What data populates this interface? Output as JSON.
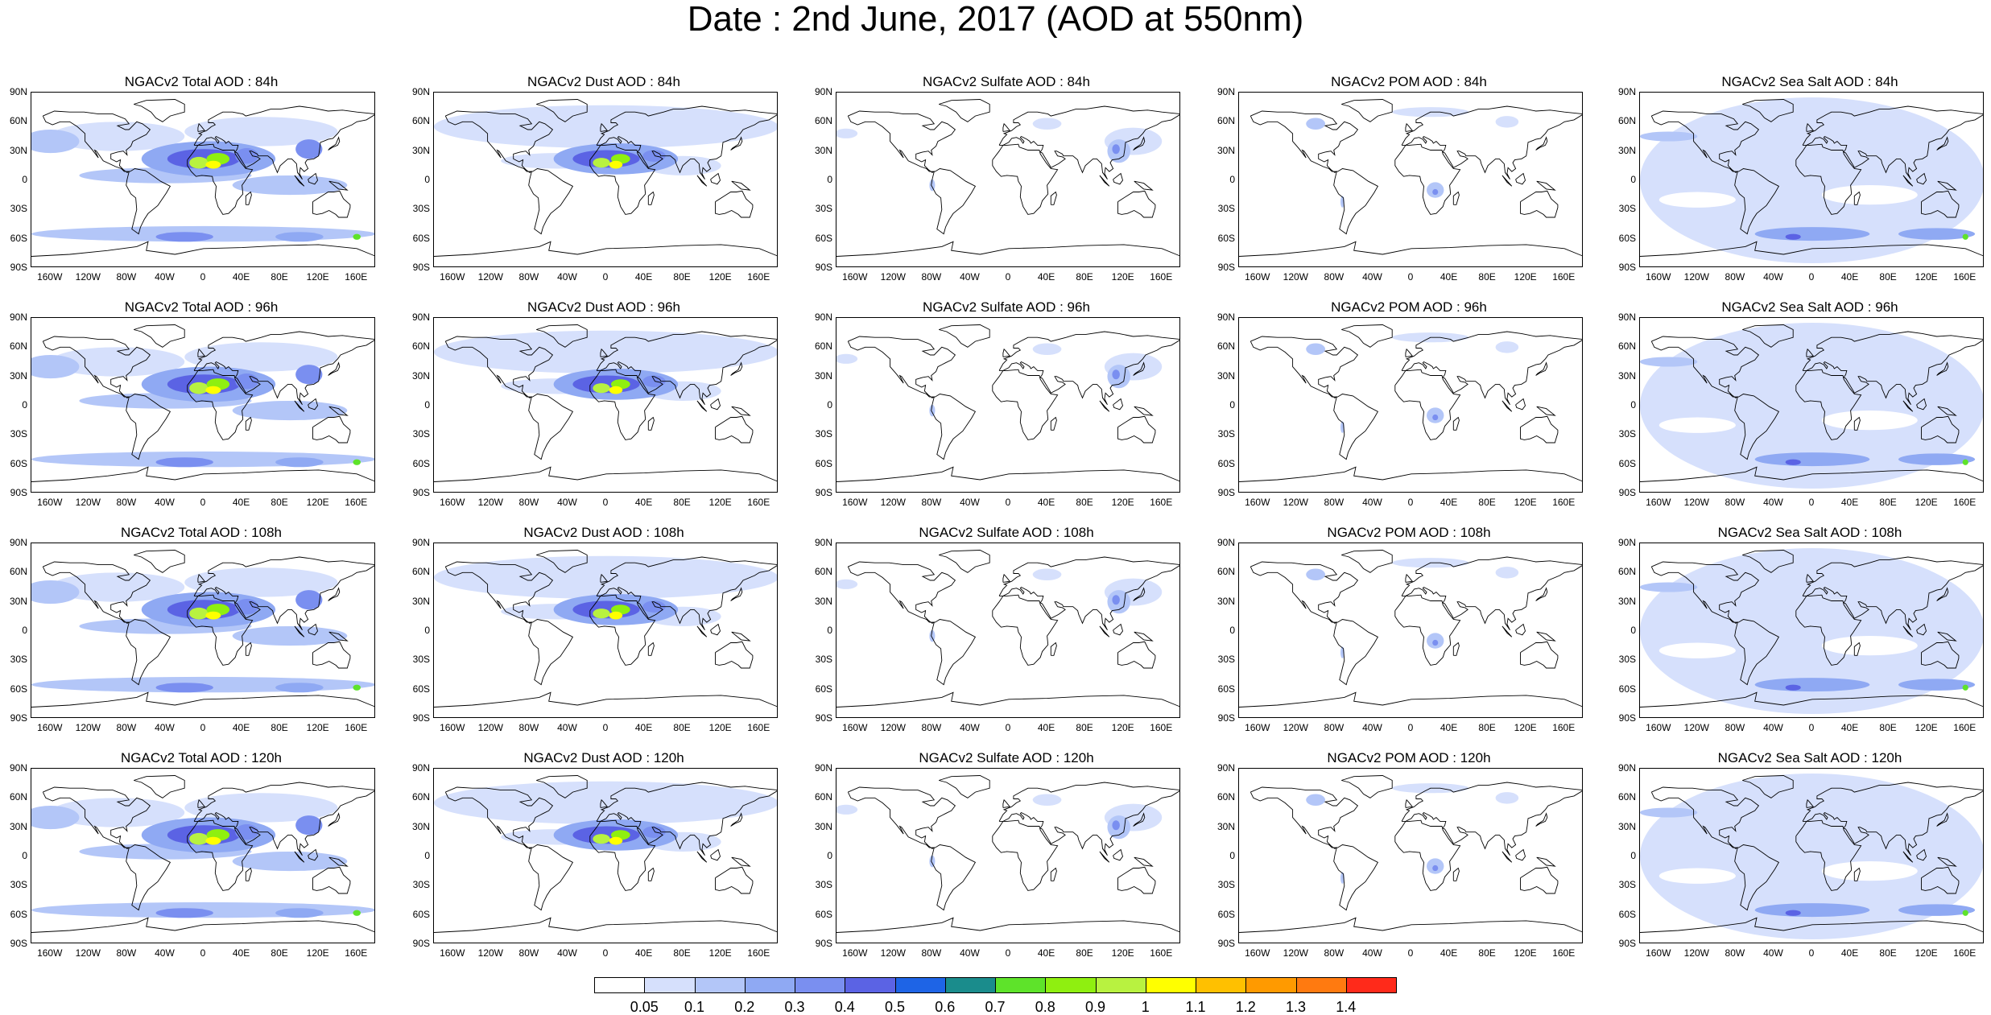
{
  "title": "Date : 2nd June, 2017 (AOD at 550nm)",
  "lat_ticks": [
    "90N",
    "60N",
    "30N",
    "0",
    "30S",
    "60S",
    "90S"
  ],
  "lon_ticks": [
    "160W",
    "120W",
    "80W",
    "40W",
    "0",
    "40E",
    "80E",
    "120E",
    "160E"
  ],
  "panels": [
    [
      {
        "title": "NGACv2 Total AOD : 84h",
        "species": "total"
      },
      {
        "title": "NGACv2 Dust AOD : 84h",
        "species": "dust"
      },
      {
        "title": "NGACv2 Sulfate AOD : 84h",
        "species": "sulfate"
      },
      {
        "title": "NGACv2 POM AOD : 84h",
        "species": "pom"
      },
      {
        "title": "NGACv2 Sea Salt AOD : 84h",
        "species": "seasalt"
      }
    ],
    [
      {
        "title": "NGACv2 Total AOD : 96h",
        "species": "total"
      },
      {
        "title": "NGACv2 Dust AOD : 96h",
        "species": "dust"
      },
      {
        "title": "NGACv2 Sulfate AOD : 96h",
        "species": "sulfate"
      },
      {
        "title": "NGACv2 POM AOD : 96h",
        "species": "pom"
      },
      {
        "title": "NGACv2 Sea Salt AOD : 96h",
        "species": "seasalt"
      }
    ],
    [
      {
        "title": "NGACv2 Total AOD : 108h",
        "species": "total"
      },
      {
        "title": "NGACv2 Dust AOD : 108h",
        "species": "dust"
      },
      {
        "title": "NGACv2 Sulfate AOD : 108h",
        "species": "sulfate"
      },
      {
        "title": "NGACv2 POM AOD : 108h",
        "species": "pom"
      },
      {
        "title": "NGACv2 Sea Salt AOD : 108h",
        "species": "seasalt"
      }
    ],
    [
      {
        "title": "NGACv2 Total AOD : 120h",
        "species": "total"
      },
      {
        "title": "NGACv2 Dust AOD : 120h",
        "species": "dust"
      },
      {
        "title": "NGACv2 Sulfate AOD : 120h",
        "species": "sulfate"
      },
      {
        "title": "NGACv2 POM AOD : 120h",
        "species": "pom"
      },
      {
        "title": "NGACv2 Sea Salt  AOD : 120h",
        "species": "seasalt"
      }
    ]
  ],
  "colorbar": {
    "levels": [
      "0.05",
      "0.1",
      "0.2",
      "0.3",
      "0.4",
      "0.5",
      "0.6",
      "0.7",
      "0.8",
      "0.9",
      "1",
      "1.1",
      "1.2",
      "1.3",
      "1.4"
    ],
    "colors": [
      "#ffffff",
      "#d6e0fc",
      "#b3c6f8",
      "#8fa9f3",
      "#7a8ff0",
      "#5b63e4",
      "#1e64e6",
      "#1a8c8c",
      "#5ee32a",
      "#8fef10",
      "#b8f240",
      "#ffff00",
      "#ffc000",
      "#ff9a00",
      "#ff7a10",
      "#ff2a1a"
    ]
  }
}
